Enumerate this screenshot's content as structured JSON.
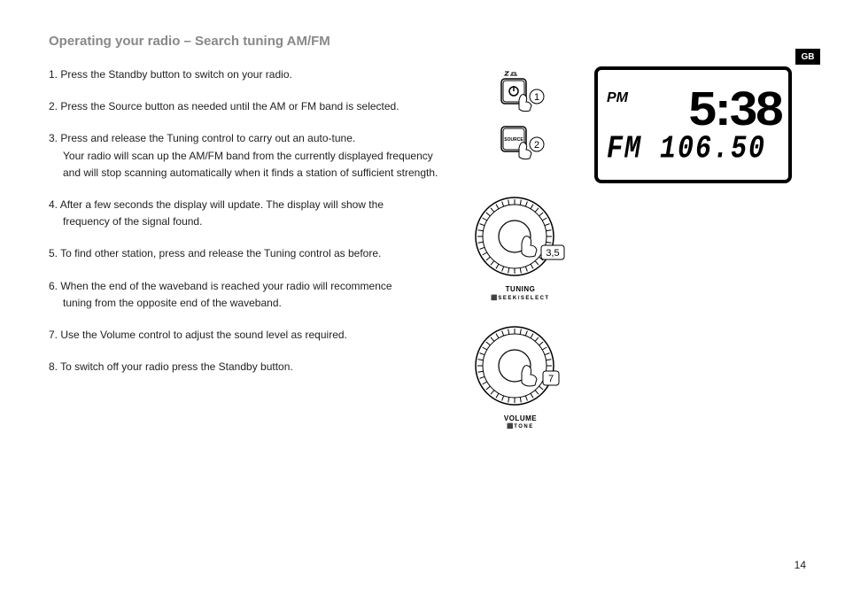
{
  "title": "Operating your radio – Search tuning AM/FM",
  "steps": [
    {
      "num": "1.",
      "text": "Press the Standby button to switch on your radio."
    },
    {
      "num": "2.",
      "text": "Press the Source button as needed until the AM or FM band is selected."
    },
    {
      "num": "3.",
      "text": "Press and release the Tuning control to carry out an auto-tune.",
      "cont": "Your radio will scan up the AM/FM band from the currently displayed frequency and will stop scanning automatically when it finds a station of sufficient strength."
    },
    {
      "num": "4.",
      "text": "After a few seconds the display will update. The display will show the",
      "cont": "frequency of the signal found."
    },
    {
      "num": "5.",
      "text": "To find other station, press and release the Tuning control as before."
    },
    {
      "num": "6.",
      "text": "When the end of the waveband is reached your radio will recommence",
      "cont": "tuning from the opposite end of the waveband."
    },
    {
      "num": "7.",
      "text": "Use the Volume control to adjust the sound level as required."
    },
    {
      "num": "8.",
      "text": "To switch off your radio press the Standby button."
    }
  ],
  "callouts": {
    "btn1": "1",
    "btn2": "2",
    "dial1": "3,5",
    "dial2": "7"
  },
  "dial_labels": {
    "tuning": "TUNING",
    "tuning_sub": "SEEK/SELECT",
    "volume": "VOLUME",
    "volume_sub": "TONE"
  },
  "btn_labels": {
    "source": "SOURCE"
  },
  "lcd": {
    "pm": "PM",
    "time": "5:38",
    "band": "FM",
    "freq": "106.50"
  },
  "tag": "GB",
  "page_num": "14",
  "colors": {
    "title": "#888888",
    "text": "#222222",
    "border": "#000000",
    "bg": "#ffffff"
  }
}
